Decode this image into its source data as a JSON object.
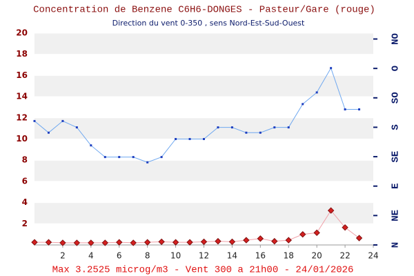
{
  "chart_data": {
    "type": "line",
    "title": "Concentration de Benzene C6H6-DONGES - Pasteur/Gare (rouge)",
    "subtitle": "Direction du vent 0-350 , sens Nord-Est-Sud-Ouest",
    "footer": "Max 3.2525 microg/m3 - Vent 300  a 21h00 - 24/01/2026",
    "x": [
      0,
      1,
      2,
      3,
      4,
      5,
      6,
      7,
      8,
      9,
      10,
      11,
      12,
      13,
      14,
      15,
      16,
      17,
      18,
      19,
      20,
      21,
      22,
      23
    ],
    "series": [
      {
        "color": "#1f3fbf",
        "line_color": "#6fa8f0",
        "marker": "square",
        "values": [
          11.7,
          10.6,
          11.7,
          11.1,
          9.4,
          8.3,
          8.3,
          8.3,
          7.8,
          8.3,
          10,
          10,
          10,
          11.1,
          11.1,
          10.6,
          10.6,
          11.1,
          11.1,
          13.3,
          14.4,
          16.7,
          12.8,
          12.8
        ]
      },
      {
        "color": "#d42020",
        "line_color": "#f0a0a8",
        "marker": "diamond",
        "values": [
          0.25,
          0.25,
          0.2,
          0.2,
          0.2,
          0.2,
          0.25,
          0.2,
          0.25,
          0.3,
          0.25,
          0.25,
          0.3,
          0.35,
          0.3,
          0.45,
          0.6,
          0.35,
          0.45,
          1.0,
          1.15,
          3.2525,
          1.65,
          0.65
        ]
      }
    ],
    "xlim": [
      0,
      24
    ],
    "xticks": [
      2,
      4,
      6,
      8,
      10,
      12,
      14,
      16,
      18,
      20,
      22,
      24
    ],
    "ylim": [
      0,
      20
    ],
    "yticks": [
      2,
      4,
      6,
      8,
      10,
      12,
      14,
      16,
      18,
      20
    ],
    "y2lim": [
      0,
      324
    ],
    "y2ticks": [
      {
        "value": 0,
        "label": "N"
      },
      {
        "value": 45,
        "label": "NE"
      },
      {
        "value": 90,
        "label": "E"
      },
      {
        "value": 135,
        "label": "SE"
      },
      {
        "value": 180,
        "label": "S"
      },
      {
        "value": 225,
        "label": "SO"
      },
      {
        "value": 270,
        "label": "O"
      },
      {
        "value": 315,
        "label": "NO"
      }
    ],
    "grid": true
  }
}
